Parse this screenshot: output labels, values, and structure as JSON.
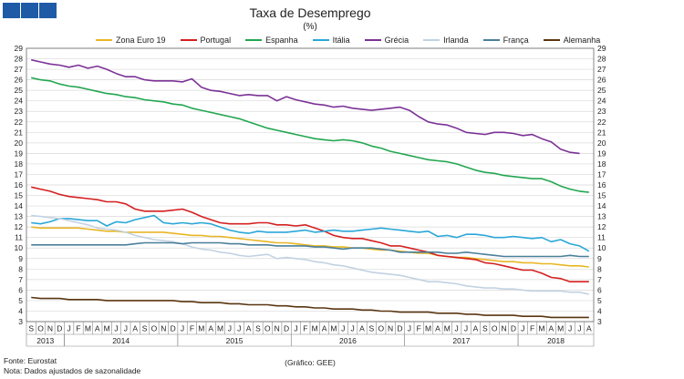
{
  "header": {
    "title": "Taxa de Desemprego",
    "subtitle": "(%)",
    "brand_color": "#1f5aa6"
  },
  "footer": {
    "source": "Fonte: Eurostat",
    "note": "Nota: Dados ajustados de sazonalidade",
    "credit": "(Gráfico: GEE)"
  },
  "chart_data": {
    "type": "line",
    "title": "Taxa de Desemprego",
    "subtitle": "(%)",
    "ylim": [
      3,
      29
    ],
    "y_ticks": [
      3,
      4,
      5,
      6,
      7,
      8,
      9,
      10,
      11,
      12,
      13,
      14,
      15,
      16,
      17,
      18,
      19,
      20,
      21,
      22,
      23,
      24,
      25,
      26,
      27,
      28,
      29
    ],
    "grid": true,
    "legend_position": "top",
    "x_months": [
      "S",
      "O",
      "N",
      "D",
      "J",
      "F",
      "M",
      "A",
      "M",
      "J",
      "J",
      "A",
      "S",
      "O",
      "N",
      "D",
      "J",
      "F",
      "M",
      "A",
      "M",
      "J",
      "J",
      "A",
      "S",
      "O",
      "N",
      "D",
      "J",
      "F",
      "M",
      "A",
      "M",
      "J",
      "J",
      "A",
      "S",
      "O",
      "N",
      "D",
      "J",
      "F",
      "M",
      "A",
      "M",
      "J",
      "J",
      "A",
      "S",
      "O",
      "N",
      "D",
      "J",
      "F",
      "M",
      "A",
      "M",
      "J",
      "J",
      "A"
    ],
    "x_years": [
      {
        "label": "2013",
        "start": 0,
        "end": 3
      },
      {
        "label": "2014",
        "start": 4,
        "end": 15
      },
      {
        "label": "2015",
        "start": 16,
        "end": 27
      },
      {
        "label": "2016",
        "start": 28,
        "end": 39
      },
      {
        "label": "2017",
        "start": 40,
        "end": 51
      },
      {
        "label": "2018",
        "start": 52,
        "end": 59
      }
    ],
    "series": [
      {
        "name": "Zona Euro 19",
        "color": "#e8b624",
        "values": [
          12.0,
          11.9,
          11.9,
          11.9,
          11.9,
          11.9,
          11.8,
          11.7,
          11.6,
          11.6,
          11.5,
          11.5,
          11.5,
          11.5,
          11.5,
          11.4,
          11.3,
          11.2,
          11.2,
          11.1,
          11.1,
          11.0,
          10.9,
          10.8,
          10.7,
          10.6,
          10.5,
          10.5,
          10.4,
          10.3,
          10.2,
          10.2,
          10.1,
          10.1,
          10.0,
          10.0,
          9.9,
          9.8,
          9.8,
          9.7,
          9.6,
          9.5,
          9.5,
          9.3,
          9.2,
          9.1,
          9.1,
          9.0,
          8.9,
          8.8,
          8.7,
          8.7,
          8.6,
          8.6,
          8.5,
          8.5,
          8.4,
          8.3,
          8.3,
          8.2
        ]
      },
      {
        "name": "Portugal",
        "color": "#d42020",
        "values": [
          15.8,
          15.6,
          15.4,
          15.1,
          14.9,
          14.8,
          14.7,
          14.6,
          14.4,
          14.4,
          14.2,
          13.7,
          13.5,
          13.5,
          13.5,
          13.6,
          13.7,
          13.4,
          13.0,
          12.7,
          12.4,
          12.3,
          12.3,
          12.3,
          12.4,
          12.4,
          12.2,
          12.2,
          12.1,
          12.2,
          11.9,
          11.6,
          11.2,
          11.0,
          10.9,
          10.9,
          10.7,
          10.5,
          10.2,
          10.2,
          10.0,
          9.8,
          9.6,
          9.3,
          9.2,
          9.1,
          9.0,
          8.9,
          8.6,
          8.5,
          8.3,
          8.1,
          7.9,
          7.9,
          7.6,
          7.2,
          7.1,
          6.8,
          6.8,
          6.8
        ]
      },
      {
        "name": "Espanha",
        "color": "#22a650",
        "values": [
          26.2,
          26.0,
          25.9,
          25.6,
          25.4,
          25.3,
          25.1,
          24.9,
          24.7,
          24.6,
          24.4,
          24.3,
          24.1,
          24.0,
          23.9,
          23.7,
          23.6,
          23.3,
          23.1,
          22.9,
          22.7,
          22.5,
          22.3,
          22.0,
          21.7,
          21.4,
          21.2,
          21.0,
          20.8,
          20.6,
          20.4,
          20.3,
          20.2,
          20.3,
          20.2,
          20.0,
          19.7,
          19.5,
          19.2,
          19.0,
          18.8,
          18.6,
          18.4,
          18.3,
          18.2,
          18.0,
          17.7,
          17.4,
          17.2,
          17.1,
          16.9,
          16.8,
          16.7,
          16.6,
          16.6,
          16.3,
          15.9,
          15.6,
          15.4,
          15.3
        ]
      },
      {
        "name": "Itália",
        "color": "#2aa7d8",
        "values": [
          12.4,
          12.3,
          12.5,
          12.8,
          12.8,
          12.7,
          12.6,
          12.6,
          12.1,
          12.5,
          12.4,
          12.7,
          12.9,
          13.1,
          12.4,
          12.3,
          12.4,
          12.3,
          12.4,
          12.3,
          12.0,
          11.7,
          11.5,
          11.4,
          11.6,
          11.5,
          11.5,
          11.5,
          11.6,
          11.7,
          11.5,
          11.6,
          11.7,
          11.6,
          11.6,
          11.7,
          11.8,
          11.9,
          11.8,
          11.7,
          11.6,
          11.5,
          11.6,
          11.1,
          11.2,
          11.0,
          11.3,
          11.3,
          11.2,
          11.0,
          11.0,
          11.1,
          11.0,
          10.9,
          11.0,
          10.6,
          10.8,
          10.4,
          10.2,
          9.7
        ]
      },
      {
        "name": "Grécia",
        "color": "#7b3296",
        "values": [
          27.9,
          27.7,
          27.5,
          27.4,
          27.2,
          27.4,
          27.1,
          27.3,
          27.0,
          26.6,
          26.3,
          26.3,
          26.0,
          25.9,
          25.9,
          25.9,
          25.8,
          26.1,
          25.3,
          25.0,
          24.9,
          24.7,
          24.5,
          24.6,
          24.5,
          24.5,
          24.0,
          24.4,
          24.1,
          23.9,
          23.7,
          23.6,
          23.4,
          23.5,
          23.3,
          23.2,
          23.1,
          23.2,
          23.3,
          23.4,
          23.1,
          22.5,
          22.0,
          21.8,
          21.7,
          21.4,
          21.0,
          20.9,
          20.8,
          21.0,
          21.0,
          20.9,
          20.7,
          20.8,
          20.4,
          20.1,
          19.4,
          19.1,
          19.0,
          null
        ]
      },
      {
        "name": "Irlanda",
        "color": "#c2d2e2",
        "values": [
          13.1,
          13.0,
          12.9,
          12.8,
          12.6,
          12.4,
          12.2,
          11.9,
          11.8,
          11.7,
          11.5,
          11.2,
          11.0,
          10.8,
          10.7,
          10.6,
          10.4,
          10.1,
          9.9,
          9.8,
          9.6,
          9.5,
          9.3,
          9.2,
          9.3,
          9.4,
          9.0,
          9.1,
          9.0,
          8.9,
          8.7,
          8.6,
          8.4,
          8.3,
          8.1,
          7.9,
          7.7,
          7.6,
          7.5,
          7.4,
          7.2,
          7.0,
          6.8,
          6.8,
          6.7,
          6.6,
          6.4,
          6.3,
          6.2,
          6.2,
          6.1,
          6.1,
          6.0,
          5.9,
          5.9,
          5.9,
          5.9,
          5.8,
          5.8,
          5.6
        ]
      },
      {
        "name": "França",
        "color": "#4a7f9a",
        "values": [
          10.3,
          10.3,
          10.3,
          10.3,
          10.3,
          10.3,
          10.3,
          10.3,
          10.3,
          10.3,
          10.3,
          10.4,
          10.5,
          10.5,
          10.5,
          10.5,
          10.4,
          10.5,
          10.5,
          10.5,
          10.5,
          10.4,
          10.4,
          10.3,
          10.3,
          10.3,
          10.2,
          10.2,
          10.2,
          10.2,
          10.1,
          10.1,
          10.0,
          9.9,
          10.0,
          10.0,
          10.0,
          9.9,
          9.8,
          9.6,
          9.6,
          9.6,
          9.6,
          9.6,
          9.5,
          9.5,
          9.6,
          9.5,
          9.4,
          9.3,
          9.2,
          9.2,
          9.2,
          9.2,
          9.2,
          9.2,
          9.2,
          9.3,
          9.2,
          9.2
        ]
      },
      {
        "name": "Alemanha",
        "color": "#5a3510",
        "values": [
          5.3,
          5.2,
          5.2,
          5.2,
          5.1,
          5.1,
          5.1,
          5.1,
          5.0,
          5.0,
          5.0,
          5.0,
          5.0,
          5.0,
          5.0,
          5.0,
          4.9,
          4.9,
          4.8,
          4.8,
          4.8,
          4.7,
          4.7,
          4.6,
          4.6,
          4.6,
          4.5,
          4.5,
          4.4,
          4.4,
          4.3,
          4.3,
          4.2,
          4.2,
          4.2,
          4.1,
          4.1,
          4.0,
          4.0,
          3.9,
          3.9,
          3.9,
          3.9,
          3.8,
          3.8,
          3.8,
          3.7,
          3.7,
          3.6,
          3.6,
          3.6,
          3.6,
          3.5,
          3.5,
          3.5,
          3.4,
          3.4,
          3.4,
          3.4,
          3.4
        ]
      }
    ]
  }
}
